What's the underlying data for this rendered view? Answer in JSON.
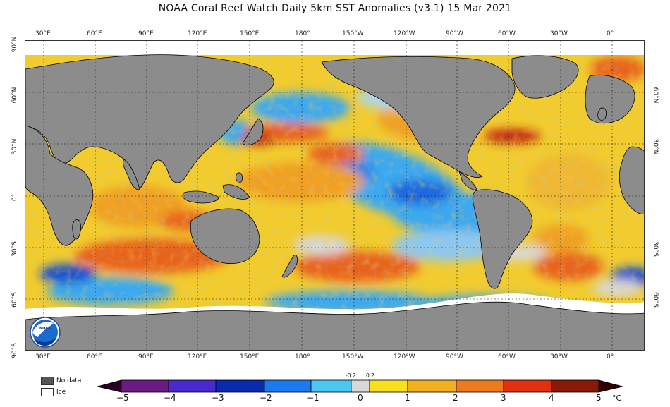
{
  "title": "NOAA Coral Reef Watch Daily 5km SST Anomalies  (v3.1)   15 Mar 2021",
  "lon_ticks": [
    "30°E",
    "60°E",
    "90°E",
    "120°E",
    "150°E",
    "180°",
    "150°W",
    "120°W",
    "90°W",
    "60°W",
    "30°W",
    "0°"
  ],
  "lat_ticks": [
    "90°N",
    "60°N",
    "30°N",
    "0°",
    "30°S",
    "60°S",
    "90°S"
  ],
  "legend": {
    "no_data": "No data",
    "ice": "Ice"
  },
  "colorbar": {
    "labels": [
      "−5",
      "−4",
      "−3",
      "−2",
      "−1",
      "0",
      "1",
      "2",
      "3",
      "4",
      "5"
    ],
    "small_labels": [
      "-0.2",
      "0.2"
    ],
    "unit": "°C"
  },
  "colors": {
    "land": "#8c8c8c",
    "no_data": "#555555",
    "ice": "#ffffff",
    "neutral": "#d8d8d8",
    "warm": "#f2cc2c",
    "hot": "#e8641e",
    "cool": "#3aa8f0",
    "cold": "#1450d0"
  }
}
